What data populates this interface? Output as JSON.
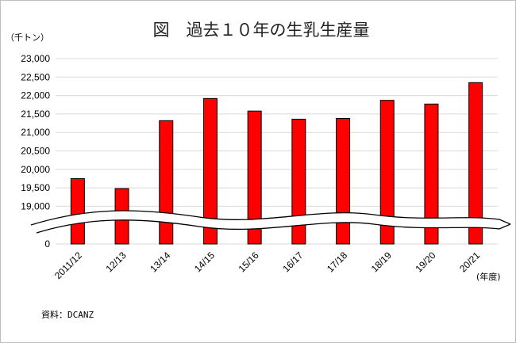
{
  "chart_data": {
    "type": "bar",
    "title": "図　過去１０年の生乳生産量",
    "ylabel": "（千トン）",
    "xlabel": "(年度)",
    "source": "資料：DCANZ",
    "categories": [
      "2011/12",
      "12/13",
      "13/14",
      "14/15",
      "15/16",
      "16/17",
      "17/18",
      "18/19",
      "19/20",
      "20/21"
    ],
    "series": [
      {
        "values": [
          19750,
          19480,
          21320,
          21920,
          21580,
          21360,
          21380,
          21870,
          21770,
          22350
        ]
      }
    ],
    "ylim": [
      19000,
      23000
    ],
    "axis_break": true,
    "yticks": [
      "23,000",
      "22,500",
      "22,000",
      "21,500",
      "21,000",
      "20,500",
      "20,000",
      "19,500",
      "19,000",
      "0"
    ],
    "grid": true,
    "legend": "none",
    "colors": {
      "bar": "#ff0000",
      "bar_edge": "#000000",
      "grid": "#d9d9d9"
    }
  }
}
